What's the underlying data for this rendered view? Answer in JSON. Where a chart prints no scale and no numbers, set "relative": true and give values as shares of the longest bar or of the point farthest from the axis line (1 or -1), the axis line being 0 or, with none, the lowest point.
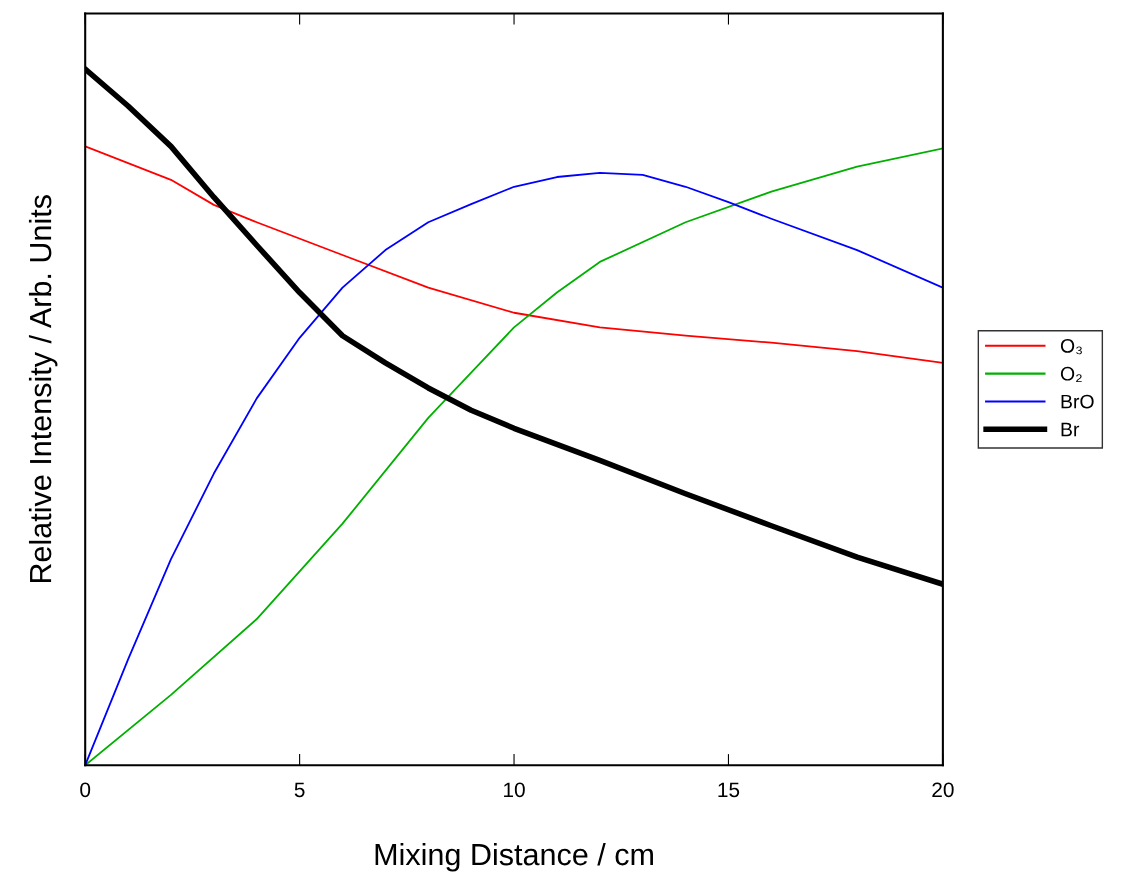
{
  "chart_data": {
    "type": "line",
    "relative": true,
    "xlabel": "Mixing Distance / cm",
    "ylabel": "Relative Intensity / Arb. Units",
    "xlim": [
      0,
      20
    ],
    "xticks": [
      0,
      5,
      10,
      15,
      20
    ],
    "tick_labels": "x",
    "grid": false,
    "legend": "right",
    "marker": "none",
    "line_style": "solid",
    "series": [
      {
        "name": "O₃",
        "color": "#ff0000",
        "x": [
          0,
          2,
          3,
          4,
          6,
          8,
          10,
          12,
          14,
          16,
          18,
          20
        ],
        "values": [
          0.889,
          0.841,
          0.805,
          0.78,
          0.733,
          0.686,
          0.65,
          0.629,
          0.617,
          0.607,
          0.595,
          0.578
        ]
      },
      {
        "name": "O₂",
        "color": "#00b000",
        "x": [
          0,
          2,
          4,
          6,
          8,
          9,
          10,
          11,
          12,
          14,
          16,
          18,
          20
        ],
        "values": [
          0,
          0.101,
          0.21,
          0.347,
          0.499,
          0.564,
          0.629,
          0.679,
          0.723,
          0.78,
          0.824,
          0.86,
          0.886
        ]
      },
      {
        "name": "BrO",
        "color": "#0000ff",
        "x": [
          0,
          1,
          2,
          3,
          4,
          5,
          6,
          7,
          8,
          9,
          10,
          11,
          12,
          13,
          14,
          15,
          16,
          18,
          20
        ],
        "values": [
          0,
          0.152,
          0.296,
          0.419,
          0.527,
          0.614,
          0.686,
          0.74,
          0.78,
          0.806,
          0.831,
          0.845,
          0.851,
          0.848,
          0.831,
          0.809,
          0.785,
          0.74,
          0.686
        ]
      },
      {
        "name": "Br",
        "color": "#000000",
        "x": [
          0,
          1,
          2,
          3,
          4,
          5,
          6,
          7,
          8,
          9,
          10,
          12,
          14,
          16,
          18,
          20
        ],
        "values": [
          1.0,
          0.947,
          0.889,
          0.816,
          0.747,
          0.679,
          0.617,
          0.578,
          0.542,
          0.51,
          0.484,
          0.438,
          0.39,
          0.344,
          0.299,
          0.26
        ]
      }
    ]
  }
}
